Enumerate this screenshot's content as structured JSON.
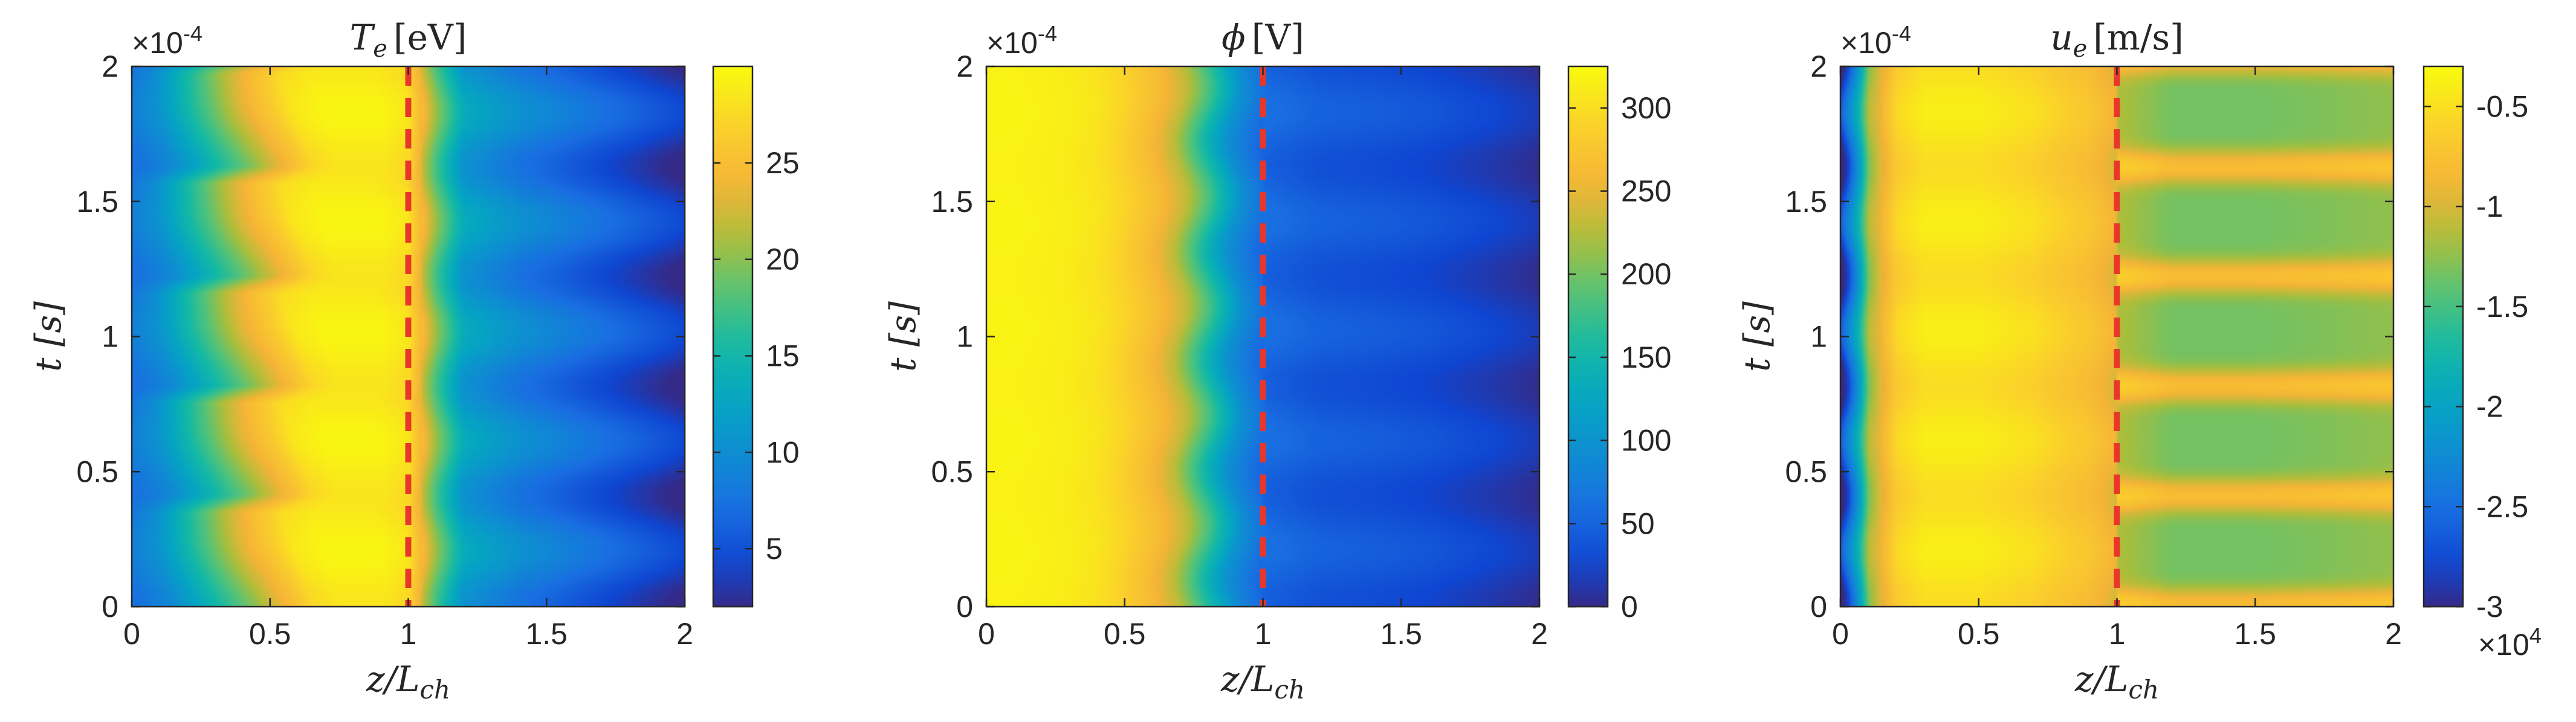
{
  "chart_data": [
    {
      "type": "heatmap",
      "title": "T_e [eV]",
      "title_main": "T",
      "title_sub": "e",
      "title_unit": "[eV]",
      "xlabel": "z/L_ch",
      "xlabel_main": "z/L",
      "xlabel_sub": "ch",
      "ylabel": "t [s]",
      "xlim": [
        0,
        2
      ],
      "ylim": [
        0,
        0.0002
      ],
      "x_ticks": [
        "0",
        "0.5",
        "1",
        "1.5",
        "2"
      ],
      "y_ticks": [
        "0",
        "0.5",
        "1",
        "1.5",
        "2"
      ],
      "y_exponent_label": "×10",
      "y_exponent_power": "-4",
      "colorbar_range": [
        2,
        30
      ],
      "colorbar_ticks": [
        5,
        10,
        15,
        20,
        25
      ],
      "colorbar_tick_labels": [
        "5",
        "10",
        "15",
        "20",
        "25"
      ],
      "colorbar_exponent_label": "",
      "colorbar_exponent_power": "",
      "reference_line_x": 1,
      "profile_z": [
        0,
        0.1,
        0.2,
        0.3,
        0.4,
        0.5,
        0.6,
        0.7,
        0.8,
        0.9,
        1.0,
        1.1,
        1.2,
        1.4,
        1.6,
        1.8,
        2.0
      ],
      "profile_values": [
        8,
        10,
        14,
        18,
        22,
        25,
        28,
        29,
        29,
        29,
        28,
        19,
        12,
        9,
        7,
        5,
        3
      ],
      "oscillation_amplitude": 3,
      "oscillation_periods": 4.9,
      "shift_amplitude": 0.08
    },
    {
      "type": "heatmap",
      "title": "ϕ [V]",
      "title_main": "ϕ",
      "title_sub": "",
      "title_unit": "[V]",
      "xlabel": "z/L_ch",
      "xlabel_main": "z/L",
      "xlabel_sub": "ch",
      "ylabel": "t [s]",
      "xlim": [
        0,
        2
      ],
      "ylim": [
        0,
        0.0002
      ],
      "x_ticks": [
        "0",
        "0.5",
        "1",
        "1.5",
        "2"
      ],
      "y_ticks": [
        "0",
        "0.5",
        "1",
        "1.5",
        "2"
      ],
      "y_exponent_label": "×10",
      "y_exponent_power": "-4",
      "colorbar_range": [
        0,
        325
      ],
      "colorbar_ticks": [
        0,
        50,
        100,
        150,
        200,
        250,
        300
      ],
      "colorbar_tick_labels": [
        "0",
        "50",
        "100",
        "150",
        "200",
        "250",
        "300"
      ],
      "colorbar_exponent_label": "",
      "colorbar_exponent_power": "",
      "reference_line_x": 1,
      "profile_z": [
        0,
        0.1,
        0.2,
        0.3,
        0.4,
        0.5,
        0.6,
        0.7,
        0.8,
        0.9,
        1.0,
        1.2,
        1.4,
        1.6,
        1.8,
        2.0
      ],
      "profile_values": [
        318,
        318,
        316,
        312,
        305,
        290,
        265,
        230,
        165,
        95,
        55,
        42,
        38,
        32,
        22,
        10
      ],
      "oscillation_amplitude": 15,
      "oscillation_periods": 4.9,
      "shift_amplitude": 0.03
    },
    {
      "type": "heatmap",
      "title": "u_e [m/s]",
      "title_main": "u",
      "title_sub": "e",
      "title_unit": "[m/s]",
      "xlabel": "z/L_ch",
      "xlabel_main": "z/L",
      "xlabel_sub": "ch",
      "ylabel": "t [s]",
      "xlim": [
        0,
        2
      ],
      "ylim": [
        0,
        0.0002
      ],
      "x_ticks": [
        "0",
        "0.5",
        "1",
        "1.5",
        "2"
      ],
      "y_ticks": [
        "0",
        "0.5",
        "1",
        "1.5",
        "2"
      ],
      "y_exponent_label": "×10",
      "y_exponent_power": "-4",
      "colorbar_range": [
        -3.0,
        -0.3
      ],
      "colorbar_ticks": [
        -3,
        -2.5,
        -2,
        -1.5,
        -1,
        -0.5
      ],
      "colorbar_tick_labels": [
        "-3",
        "-2.5",
        "-2",
        "-1.5",
        "-1",
        "-0.5"
      ],
      "colorbar_exponent_label": "×10",
      "colorbar_exponent_power": "4",
      "reference_line_x": 1,
      "profile_z": [
        0,
        0.02,
        0.06,
        0.1,
        0.2,
        0.3,
        0.5,
        0.7,
        0.9,
        1.0,
        1.2,
        1.5,
        1.8,
        2.0
      ],
      "profile_values": [
        -2.9,
        -2.6,
        -2.0,
        -1.2,
        -0.6,
        -0.45,
        -0.45,
        -0.55,
        -0.75,
        -0.95,
        -1.15,
        -1.15,
        -1.1,
        -1.05
      ],
      "oscillation_amplitude": 0.45,
      "oscillation_periods": 4.9,
      "shift_amplitude": 0.02
    }
  ]
}
